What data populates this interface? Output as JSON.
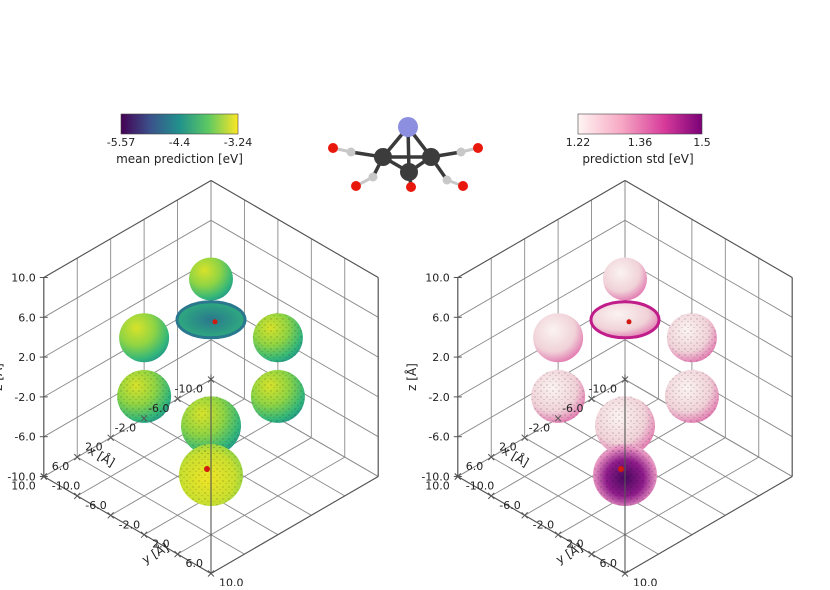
{
  "left_colorbar": {
    "tick_labels": [
      "-5.57",
      "-4.4",
      "-3.24"
    ],
    "label": "mean prediction [eV]",
    "colors": [
      "#440154",
      "#3b528b",
      "#21918c",
      "#5ec962",
      "#fde725"
    ]
  },
  "right_colorbar": {
    "tick_labels": [
      "1.22",
      "1.36",
      "1.5"
    ],
    "label": "prediction std [eV]",
    "colors": [
      "#fff5f3",
      "#f7a8c4",
      "#d63a9a",
      "#7a0177"
    ]
  },
  "molecule": {
    "atom_colors": {
      "metal": "#8c8fe0",
      "carbon": "#555555",
      "ring_carbon": "#3c3c3c",
      "oxygen": "#e8180c",
      "light": "#c8c8c8"
    }
  },
  "left_plot": {
    "z_ticks": [
      "10.0",
      "6.0",
      "2.0",
      "-2.0",
      "-6.0",
      "-10.0"
    ],
    "x_ticks": [
      "-10.0",
      "-6.0",
      "-2.0",
      "2.0",
      "6.0",
      "10.0"
    ],
    "y_ticks": [
      "-10.0",
      "-6.0",
      "-2.0",
      "2.0",
      "6.0",
      "10.0"
    ],
    "z_label": "z [Å]",
    "x_label": "x [Å]",
    "y_label": "y [Å]",
    "surface_colormap": "viridis"
  },
  "right_plot": {
    "z_ticks": [
      "10.0",
      "6.0",
      "2.0",
      "-2.0",
      "-6.0",
      "-10.0"
    ],
    "x_ticks": [
      "-10.0",
      "-6.0",
      "-2.0",
      "2.0",
      "6.0",
      "10.0"
    ],
    "y_ticks": [
      "-10.0",
      "-6.0",
      "-2.0",
      "2.0",
      "6.0",
      "10.0"
    ],
    "z_label": "z [Å]",
    "x_label": "x [Å]",
    "y_label": "y [Å]",
    "surface_colormap": "RdPu"
  }
}
